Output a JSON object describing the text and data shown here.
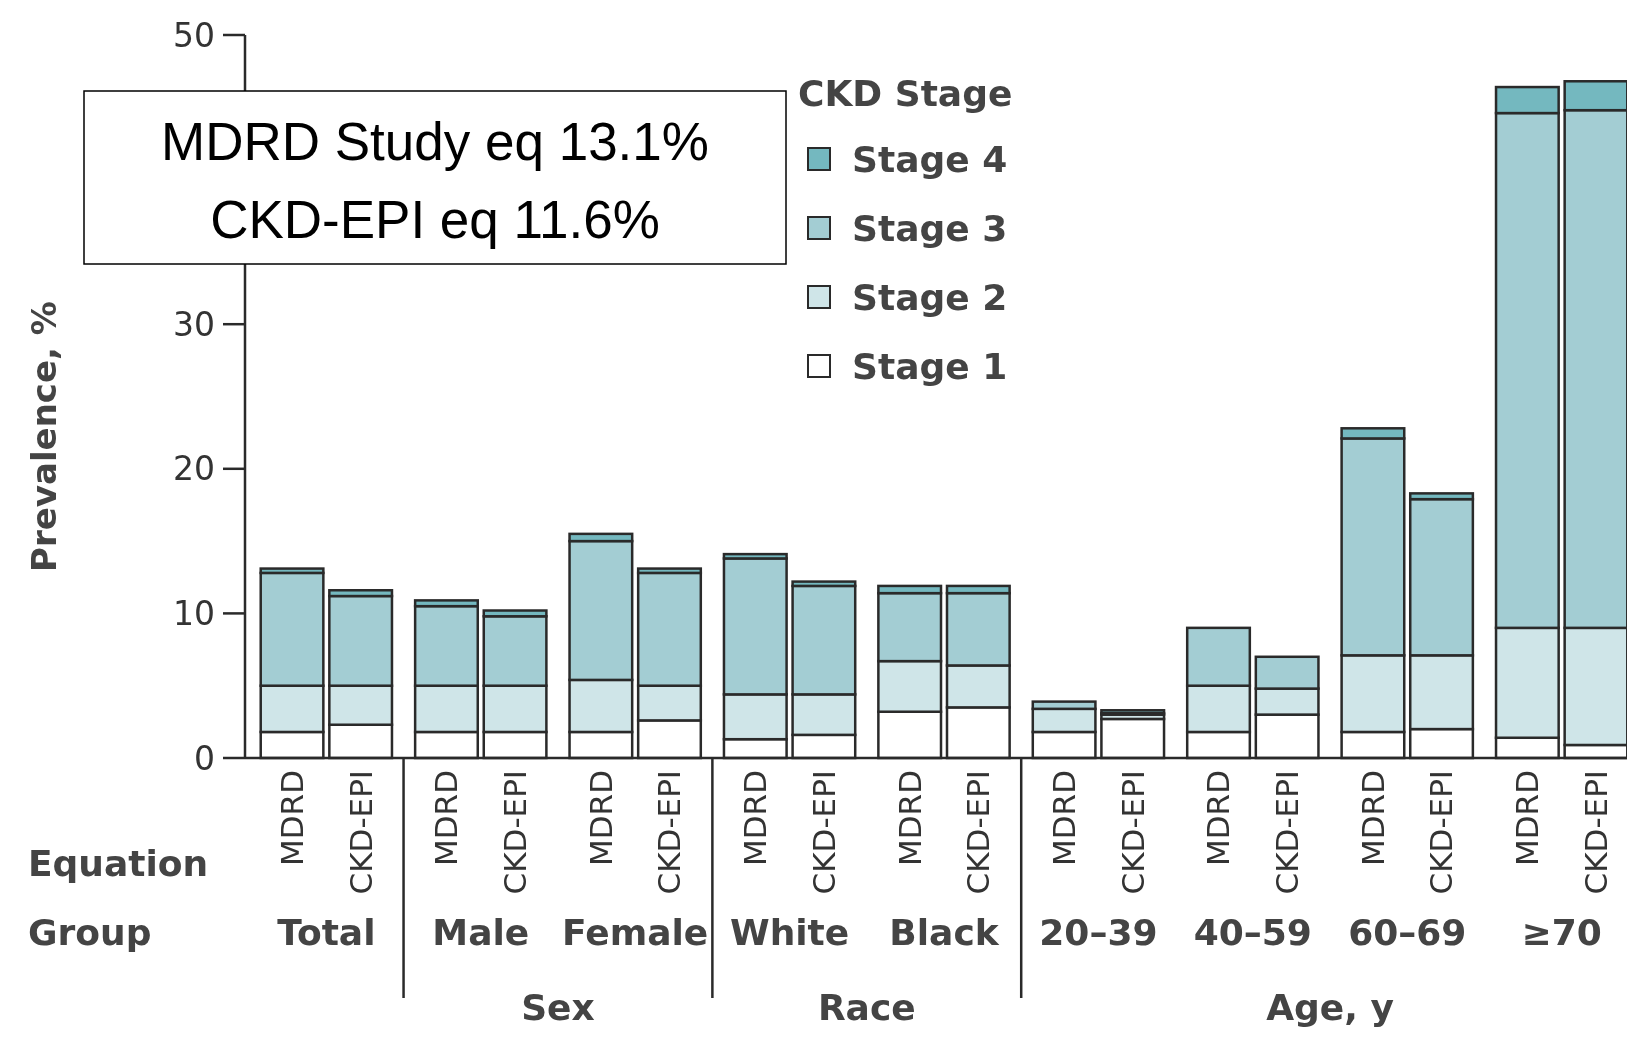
{
  "chart_data": {
    "type": "bar",
    "stacked": true,
    "ylabel": "Prevalence, %",
    "legend_title": "CKD Stage",
    "legend": "top",
    "grid": false,
    "categories": [
      "MDRD",
      "CKD-EPI",
      "MDRD",
      "CKD-EPI",
      "MDRD",
      "CKD-EPI",
      "MDRD",
      "CKD-EPI",
      "MDRD",
      "CKD-EPI",
      "MDRD",
      "CKD-EPI",
      "MDRD",
      "CKD-EPI",
      "MDRD",
      "CKD-EPI",
      "MDRD",
      "CKD-EPI"
    ],
    "series": [
      {
        "name": "Stage 1",
        "color": "#ffffff",
        "values": [
          1.8,
          2.3,
          1.8,
          1.8,
          1.8,
          2.6,
          1.3,
          1.6,
          3.2,
          3.5,
          1.8,
          2.7,
          1.8,
          3.0,
          1.8,
          2.0,
          1.4,
          0.9
        ]
      },
      {
        "name": "Stage 2",
        "color": "#cfe5e8",
        "values": [
          3.2,
          2.7,
          3.2,
          3.2,
          3.6,
          2.4,
          3.1,
          2.8,
          3.5,
          2.9,
          1.6,
          0.3,
          3.2,
          1.8,
          5.3,
          5.1,
          7.6,
          8.1
        ]
      },
      {
        "name": "Stage 3",
        "color": "#a3cdd3",
        "values": [
          7.8,
          6.2,
          5.5,
          4.8,
          9.6,
          7.8,
          9.4,
          7.5,
          4.7,
          5.0,
          0.5,
          0.1,
          4.0,
          2.2,
          15.0,
          10.8,
          35.6,
          35.8
        ]
      },
      {
        "name": "Stage 4",
        "color": "#74b8bf",
        "values": [
          0.3,
          0.4,
          0.4,
          0.4,
          0.5,
          0.3,
          0.3,
          0.3,
          0.5,
          0.5,
          0,
          0.2,
          0,
          0,
          0.7,
          0.4,
          1.8,
          2.0
        ]
      }
    ],
    "ylim": [
      0,
      50
    ],
    "yticks": [
      0,
      10,
      20,
      30,
      50
    ],
    "annotations": [
      "MDRD Study eq 13.1%",
      "CKD-EPI eq 11.6%",
      "Equation",
      "Group",
      "Total",
      "Male",
      "Female",
      "White",
      "Black",
      "20–39",
      "40–59",
      "60–69",
      "≥70",
      "Sex",
      "Race",
      "Age, y"
    ]
  }
}
